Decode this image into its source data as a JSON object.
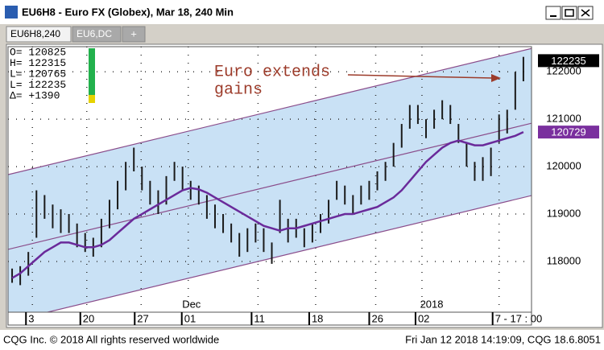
{
  "window": {
    "title": "EU6H8 - Euro FX (Globex), Mar 18, 240 Min",
    "tabs": [
      "EU6H8,240",
      "EU6,DC",
      "+"
    ],
    "footer_left": "CQG Inc. © 2018 All rights reserved worldwide",
    "footer_right": "Fri Jan 12 2018 14:19:09, CQG 18.6.8051"
  },
  "chart_data": {
    "type": "ohlc",
    "info": [
      "O=  120825",
      "H=  122315",
      "L=  120765",
      "L=  122235",
      "Δ=    +1390"
    ],
    "annotation": [
      "Euro extends",
      "gains"
    ],
    "high": [
      117850,
      117900,
      118200,
      119500,
      119400,
      119200,
      119100,
      119000,
      118800,
      118600,
      118500,
      118900,
      119300,
      119700,
      120100,
      120400,
      120000,
      119700,
      119500,
      119800,
      120100,
      120000,
      119700,
      119600,
      119400,
      119200,
      119000,
      118800,
      118600,
      118700,
      118800,
      118700,
      118400,
      119300,
      118900,
      118900,
      118700,
      118800,
      119000,
      119300,
      119700,
      119600,
      119400,
      119600,
      119700,
      119900,
      120100,
      120500,
      120900,
      121300,
      121300,
      121000,
      121200,
      121400,
      121300,
      120900,
      120500,
      120100,
      120200,
      120400,
      121100,
      121200,
      122000,
      122315
    ],
    "low": [
      117550,
      117500,
      117700,
      118500,
      118900,
      118700,
      118600,
      118600,
      118300,
      118200,
      118100,
      118300,
      118700,
      119100,
      119500,
      119900,
      119500,
      119200,
      119000,
      119200,
      119700,
      119500,
      119300,
      119200,
      118900,
      118700,
      118600,
      118400,
      118100,
      118200,
      118400,
      118200,
      117950,
      118600,
      118400,
      118500,
      118300,
      118400,
      118600,
      118800,
      119300,
      119200,
      119000,
      119200,
      119300,
      119500,
      119700,
      120000,
      120400,
      120800,
      120900,
      120600,
      120800,
      121000,
      120900,
      120500,
      120000,
      119700,
      119700,
      119800,
      120500,
      120700,
      121200,
      121800
    ],
    "series": [
      {
        "name": "Moving average",
        "color": "#6a2a9a",
        "values": [
          117650,
          117750,
          117900,
          118050,
          118200,
          118300,
          118400,
          118400,
          118350,
          118300,
          118300,
          118350,
          118450,
          118600,
          118750,
          118900,
          119000,
          119100,
          119200,
          119300,
          119400,
          119500,
          119550,
          119520,
          119450,
          119350,
          119250,
          119150,
          119050,
          118950,
          118850,
          118750,
          118700,
          118650,
          118700,
          118700,
          118750,
          118800,
          118850,
          118900,
          118950,
          119000,
          119000,
          119050,
          119100,
          119150,
          119250,
          119350,
          119500,
          119700,
          119900,
          120100,
          120250,
          120400,
          120500,
          120550,
          120500,
          120450,
          120450,
          120500,
          120550,
          120600,
          120650,
          120729
        ]
      }
    ],
    "channel": {
      "color": "#8a4c8a",
      "fill": "#c9e1f5",
      "x": [
        -0.5,
        64
      ],
      "upper": [
        119831,
        122492
      ],
      "middle": [
        118254,
        120915
      ],
      "lower": [
        116729,
        119390
      ]
    },
    "price_tags": [
      {
        "value": 122235,
        "color": "#000000"
      },
      {
        "value": 120729,
        "color": "#7a2f9e"
      }
    ],
    "xlim": [
      -0.5,
      64
    ],
    "ylim": [
      116930,
      122530
    ],
    "yticks": [
      118000,
      119000,
      120000,
      121000,
      122000
    ],
    "xticks": [
      {
        "value": 2.5,
        "label": "3"
      },
      {
        "value": 9.2,
        "label": "20"
      },
      {
        "value": 15.9,
        "label": "27"
      },
      {
        "value": 21.7,
        "label": "01"
      },
      {
        "value": 30.3,
        "label": "11"
      },
      {
        "value": 37.4,
        "label": "18"
      },
      {
        "value": 44.8,
        "label": "26"
      },
      {
        "value": 50.5,
        "label": "02"
      },
      {
        "value": 60,
        "label": "7 - 17 : 00"
      }
    ],
    "month_labels": [
      {
        "value": 22.1,
        "label": "Dec"
      },
      {
        "value": 51.7,
        "label": "2018"
      }
    ],
    "bar_color": "#1a1a1a",
    "grid": true
  }
}
